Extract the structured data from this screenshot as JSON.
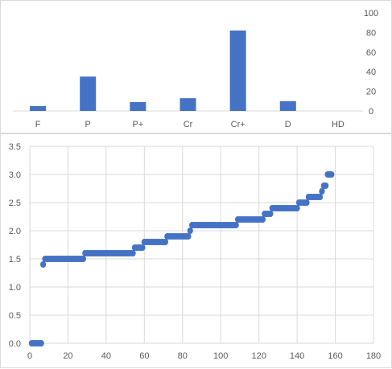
{
  "chart_data": [
    {
      "type": "bar",
      "title": "",
      "xlabel": "",
      "ylabel": "",
      "categories": [
        "F",
        "P",
        "P+",
        "Cr",
        "Cr+",
        "D",
        "HD"
      ],
      "values": [
        5,
        35,
        9,
        13,
        82,
        10,
        0
      ],
      "ylim": [
        0,
        100
      ],
      "yticks": [
        "0",
        "20",
        "40",
        "60",
        "80",
        "100"
      ],
      "y_axis_side": "right",
      "grid": false,
      "legend": "none",
      "color": "#4472c4"
    },
    {
      "type": "scatter",
      "title": "",
      "xlabel": "",
      "ylabel": "",
      "xlim": [
        0,
        180
      ],
      "ylim": [
        0,
        3.5
      ],
      "xticks": [
        "0",
        "20",
        "40",
        "60",
        "80",
        "100",
        "120",
        "140",
        "160",
        "180"
      ],
      "yticks": [
        "0.0",
        "0.5",
        "1.0",
        "1.5",
        "2.0",
        "2.5",
        "3.0",
        "3.5"
      ],
      "grid": true,
      "legend": "none",
      "color": "#4472c4",
      "segments": [
        {
          "y": 0.0,
          "x_start": 1,
          "x_end": 6
        },
        {
          "y": 1.4,
          "x_start": 7,
          "x_end": 7
        },
        {
          "y": 1.5,
          "x_start": 8,
          "x_end": 28
        },
        {
          "y": 1.6,
          "x_start": 29,
          "x_end": 54
        },
        {
          "y": 1.7,
          "x_start": 55,
          "x_end": 59
        },
        {
          "y": 1.8,
          "x_start": 60,
          "x_end": 71
        },
        {
          "y": 1.9,
          "x_start": 72,
          "x_end": 83
        },
        {
          "y": 2.0,
          "x_start": 84,
          "x_end": 84
        },
        {
          "y": 2.1,
          "x_start": 85,
          "x_end": 108
        },
        {
          "y": 2.2,
          "x_start": 109,
          "x_end": 122
        },
        {
          "y": 2.3,
          "x_start": 123,
          "x_end": 126
        },
        {
          "y": 2.4,
          "x_start": 127,
          "x_end": 140
        },
        {
          "y": 2.5,
          "x_start": 141,
          "x_end": 145
        },
        {
          "y": 2.6,
          "x_start": 146,
          "x_end": 152
        },
        {
          "y": 2.7,
          "x_start": 153,
          "x_end": 153
        },
        {
          "y": 2.8,
          "x_start": 154,
          "x_end": 155
        },
        {
          "y": 3.0,
          "x_start": 156,
          "x_end": 158
        }
      ]
    }
  ]
}
